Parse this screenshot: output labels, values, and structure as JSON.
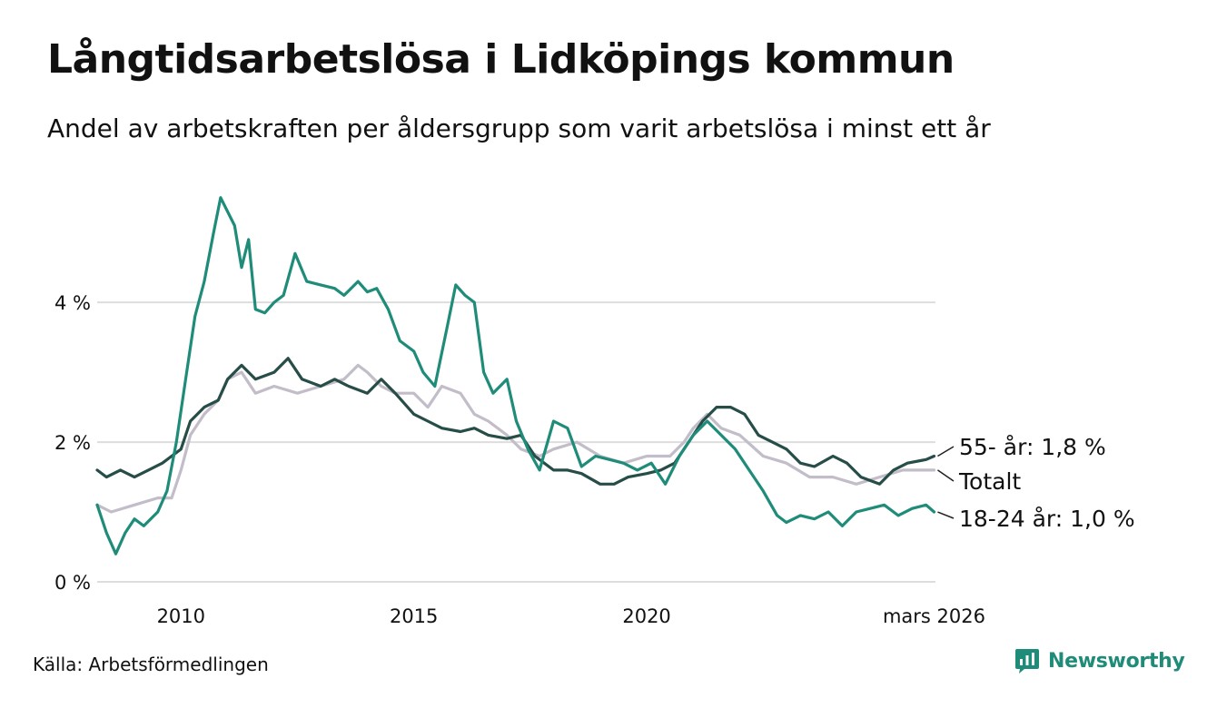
{
  "title": "Långtidsarbetslösa i Lidköpings kommun",
  "subtitle": "Andel av arbetskraften per åldersgrupp som varit arbetslösa i minst ett år",
  "source": "Källa: Arbetsförmedlingen",
  "brand": "Newsworthy",
  "colors": {
    "accent": "#1f8c7a",
    "total": "#c2bdc9",
    "older": "#264d47",
    "grid": "#dddddd"
  },
  "chart_data": {
    "type": "line",
    "title": "Långtidsarbetslösa i Lidköpings kommun",
    "xlabel": "",
    "ylabel": "",
    "xlim": [
      2008.2,
      2026.2
    ],
    "ylim": [
      0,
      5.6
    ],
    "y_ticks": [
      0,
      2,
      4
    ],
    "y_tick_labels": [
      "0 %",
      "2 %",
      "4 %"
    ],
    "x_ticks": [
      2010,
      2015,
      2020,
      2026.17
    ],
    "x_tick_labels": [
      "2010",
      "2015",
      "2020",
      "mars 2026"
    ],
    "grid": true,
    "series": [
      {
        "name": "Totalt",
        "label": "Totalt",
        "color": "#c2bdc9",
        "x": [
          2008.2,
          2008.5,
          2009.0,
          2009.5,
          2009.8,
          2010.0,
          2010.2,
          2010.5,
          2010.8,
          2011.0,
          2011.3,
          2011.6,
          2012.0,
          2012.5,
          2013.0,
          2013.5,
          2013.8,
          2014.0,
          2014.3,
          2014.6,
          2015.0,
          2015.3,
          2015.6,
          2016.0,
          2016.3,
          2016.6,
          2017.0,
          2017.3,
          2017.7,
          2018.0,
          2018.5,
          2019.0,
          2019.5,
          2020.0,
          2020.5,
          2020.8,
          2021.0,
          2021.3,
          2021.6,
          2022.0,
          2022.5,
          2023.0,
          2023.5,
          2024.0,
          2024.5,
          2025.0,
          2025.5,
          2026.17
        ],
        "values": [
          1.1,
          1.0,
          1.1,
          1.2,
          1.2,
          1.6,
          2.1,
          2.4,
          2.6,
          2.9,
          3.0,
          2.7,
          2.8,
          2.7,
          2.8,
          2.9,
          3.1,
          3.0,
          2.8,
          2.7,
          2.7,
          2.5,
          2.8,
          2.7,
          2.4,
          2.3,
          2.1,
          1.9,
          1.8,
          1.9,
          2.0,
          1.8,
          1.7,
          1.8,
          1.8,
          2.0,
          2.2,
          2.4,
          2.2,
          2.1,
          1.8,
          1.7,
          1.5,
          1.5,
          1.4,
          1.5,
          1.6,
          1.6
        ]
      },
      {
        "name": "55- år",
        "label": "55- år: 1,8 %",
        "color": "#264d47",
        "x": [
          2008.2,
          2008.4,
          2008.7,
          2009.0,
          2009.3,
          2009.6,
          2009.8,
          2010.0,
          2010.2,
          2010.5,
          2010.8,
          2011.0,
          2011.3,
          2011.6,
          2012.0,
          2012.3,
          2012.6,
          2013.0,
          2013.3,
          2013.6,
          2014.0,
          2014.3,
          2014.6,
          2015.0,
          2015.3,
          2015.6,
          2016.0,
          2016.3,
          2016.6,
          2017.0,
          2017.3,
          2017.6,
          2018.0,
          2018.3,
          2018.6,
          2019.0,
          2019.3,
          2019.6,
          2020.0,
          2020.3,
          2020.6,
          2020.9,
          2021.2,
          2021.5,
          2021.8,
          2022.1,
          2022.4,
          2022.7,
          2023.0,
          2023.3,
          2023.6,
          2024.0,
          2024.3,
          2024.6,
          2025.0,
          2025.3,
          2025.6,
          2026.0,
          2026.17
        ],
        "values": [
          1.6,
          1.5,
          1.6,
          1.5,
          1.6,
          1.7,
          1.8,
          1.9,
          2.3,
          2.5,
          2.6,
          2.9,
          3.1,
          2.9,
          3.0,
          3.2,
          2.9,
          2.8,
          2.9,
          2.8,
          2.7,
          2.9,
          2.7,
          2.4,
          2.3,
          2.2,
          2.15,
          2.2,
          2.1,
          2.05,
          2.1,
          1.8,
          1.6,
          1.6,
          1.55,
          1.4,
          1.4,
          1.5,
          1.55,
          1.6,
          1.7,
          2.0,
          2.3,
          2.5,
          2.5,
          2.4,
          2.1,
          2.0,
          1.9,
          1.7,
          1.65,
          1.8,
          1.7,
          1.5,
          1.4,
          1.6,
          1.7,
          1.75,
          1.8
        ]
      },
      {
        "name": "18-24 år",
        "label": "18-24 år: 1,0 %",
        "color": "#1f8c7a",
        "x": [
          2008.2,
          2008.4,
          2008.6,
          2008.8,
          2009.0,
          2009.2,
          2009.5,
          2009.7,
          2009.9,
          2010.1,
          2010.3,
          2010.5,
          2010.7,
          2010.85,
          2011.0,
          2011.15,
          2011.3,
          2011.45,
          2011.6,
          2011.8,
          2012.0,
          2012.2,
          2012.45,
          2012.7,
          2013.0,
          2013.3,
          2013.5,
          2013.8,
          2014.0,
          2014.2,
          2014.45,
          2014.7,
          2015.0,
          2015.2,
          2015.45,
          2015.7,
          2015.9,
          2016.1,
          2016.3,
          2016.5,
          2016.7,
          2017.0,
          2017.2,
          2017.45,
          2017.7,
          2018.0,
          2018.3,
          2018.6,
          2018.9,
          2019.2,
          2019.5,
          2019.8,
          2020.1,
          2020.4,
          2020.7,
          2021.0,
          2021.3,
          2021.6,
          2021.9,
          2022.2,
          2022.5,
          2022.8,
          2023.0,
          2023.3,
          2023.6,
          2023.9,
          2024.2,
          2024.5,
          2024.8,
          2025.1,
          2025.4,
          2025.7,
          2026.0,
          2026.17
        ],
        "values": [
          1.1,
          0.7,
          0.4,
          0.7,
          0.9,
          0.8,
          1.0,
          1.3,
          2.0,
          2.9,
          3.8,
          4.3,
          5.0,
          5.5,
          5.3,
          5.1,
          4.5,
          4.9,
          3.9,
          3.85,
          4.0,
          4.1,
          4.7,
          4.3,
          4.25,
          4.2,
          4.1,
          4.3,
          4.15,
          4.2,
          3.9,
          3.45,
          3.3,
          3.0,
          2.8,
          3.6,
          4.25,
          4.1,
          4.0,
          3.0,
          2.7,
          2.9,
          2.3,
          1.9,
          1.6,
          2.3,
          2.2,
          1.65,
          1.8,
          1.75,
          1.7,
          1.6,
          1.7,
          1.4,
          1.8,
          2.1,
          2.3,
          2.1,
          1.9,
          1.6,
          1.3,
          0.95,
          0.85,
          0.95,
          0.9,
          1.0,
          0.8,
          1.0,
          1.05,
          1.1,
          0.95,
          1.05,
          1.1,
          1.0
        ]
      }
    ]
  }
}
